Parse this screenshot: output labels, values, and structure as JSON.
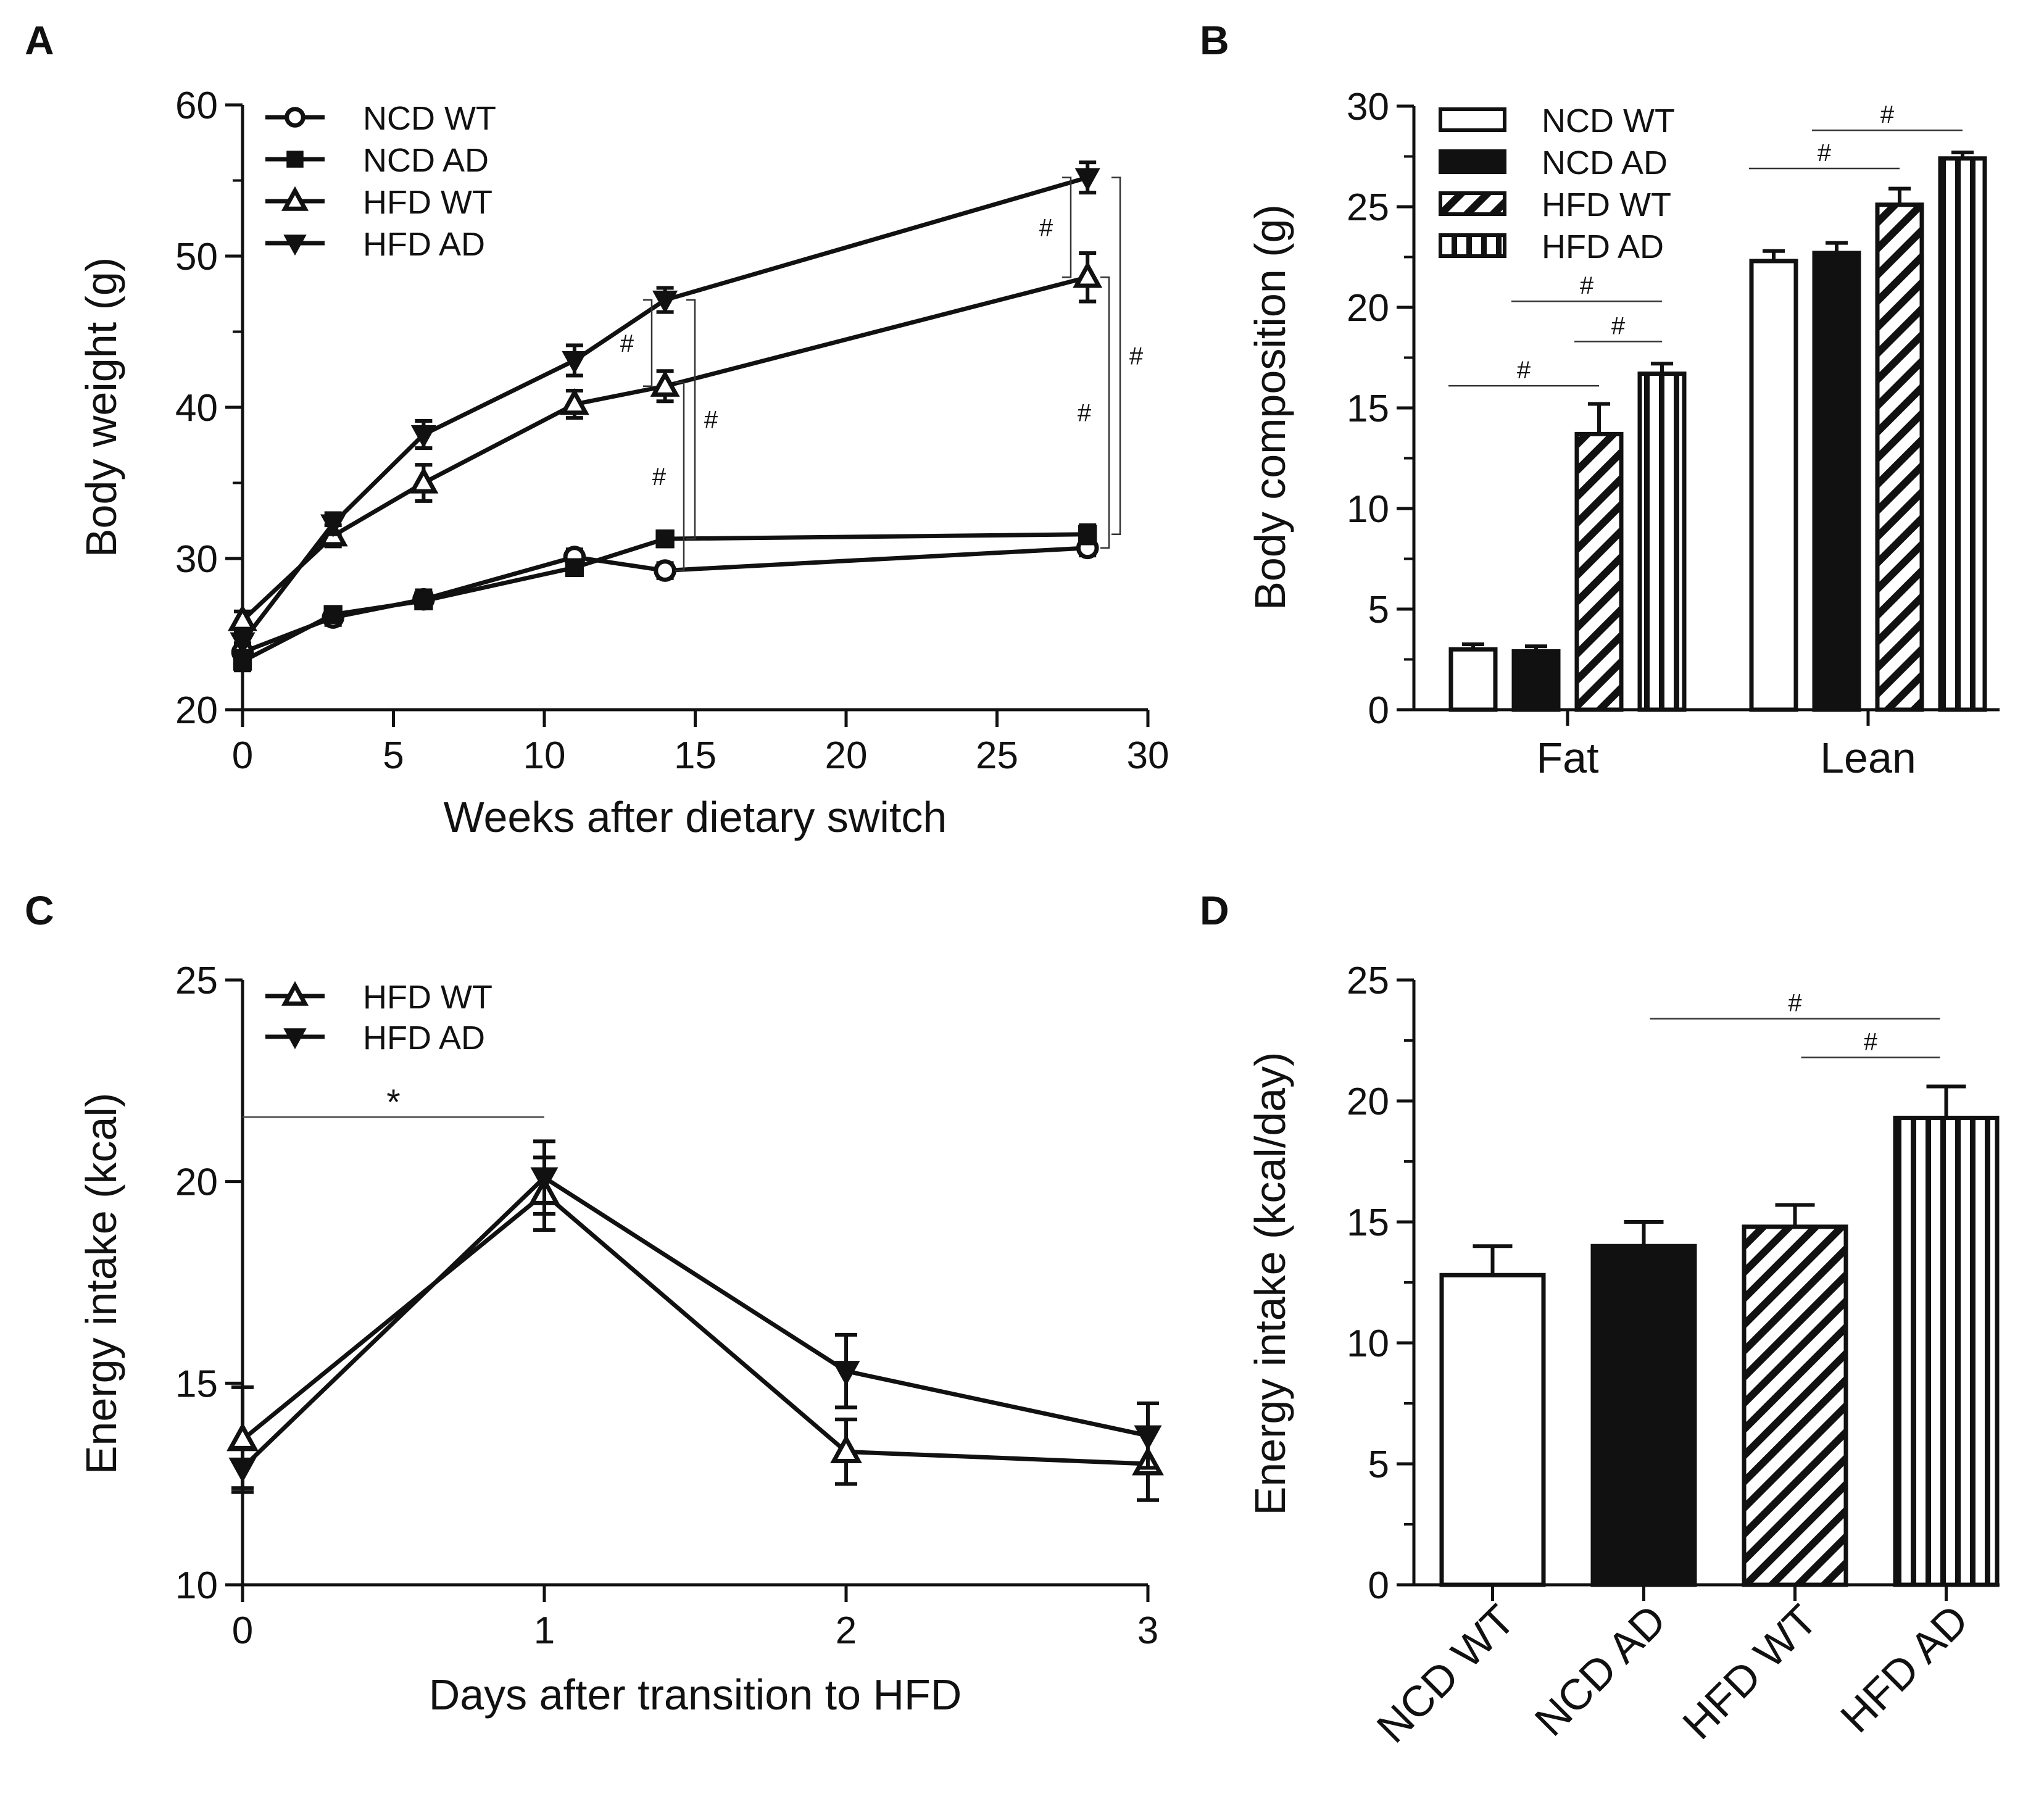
{
  "panels": [
    {
      "id": "A",
      "letter": "A",
      "chart_data": {
        "type": "line",
        "title": "",
        "xlabel": "Weeks after dietary switch",
        "ylabel": "Body weight (g)",
        "xlim": [
          0,
          30
        ],
        "ylim": [
          20,
          60
        ],
        "xticks": [
          0,
          5,
          10,
          15,
          20,
          25,
          30
        ],
        "yticks": [
          20,
          30,
          40,
          50,
          60
        ],
        "legend": "top-left",
        "series": [
          {
            "name": "NCD WT",
            "marker": "circle-open",
            "x": [
              0,
              3,
              6,
              11,
              14,
              28
            ],
            "y": [
              23.8,
              26.1,
              27.3,
              30.1,
              29.2,
              30.7
            ],
            "err": [
              0.6,
              0.5,
              0.6,
              0.5,
              0.5,
              0.5
            ]
          },
          {
            "name": "NCD AD",
            "marker": "square-filled",
            "x": [
              0,
              3,
              6,
              11,
              14,
              28
            ],
            "y": [
              23.2,
              26.3,
              27.2,
              29.4,
              31.3,
              31.6
            ],
            "err": [
              0.6,
              0.5,
              0.5,
              0.5,
              0.5,
              0.6
            ]
          },
          {
            "name": "HFD WT",
            "marker": "triangle-up-open",
            "x": [
              0,
              3,
              6,
              11,
              14,
              28
            ],
            "y": [
              25.9,
              31.5,
              35.0,
              40.2,
              41.4,
              48.6
            ],
            "err": [
              0.6,
              0.7,
              1.2,
              0.9,
              1.0,
              1.6
            ]
          },
          {
            "name": "HFD AD",
            "marker": "triangle-down-filled",
            "x": [
              0,
              3,
              6,
              11,
              14,
              28
            ],
            "y": [
              24.5,
              32.3,
              38.2,
              43.1,
              47.1,
              55.2
            ],
            "err": [
              0.6,
              0.7,
              0.9,
              1.0,
              0.8,
              1.0
            ]
          }
        ],
        "annotations": [
          {
            "text": "#",
            "type": "bracket",
            "x": 14,
            "y1": 41.4,
            "y2": 47.1
          },
          {
            "text": "#",
            "type": "bracket",
            "x": 14,
            "y1": 29.2,
            "y2": 41.4
          },
          {
            "text": "#",
            "type": "bracket",
            "x": 14,
            "y1": 31.3,
            "y2": 47.1
          },
          {
            "text": "#",
            "type": "bracket",
            "x": 28,
            "y1": 48.6,
            "y2": 55.2
          },
          {
            "text": "#",
            "type": "bracket",
            "x": 28,
            "y1": 30.7,
            "y2": 48.6
          },
          {
            "text": "#",
            "type": "bracket",
            "x": 28,
            "y1": 31.6,
            "y2": 55.2
          }
        ]
      }
    },
    {
      "id": "B",
      "letter": "B",
      "chart_data": {
        "type": "bar",
        "title": "",
        "xlabel": "",
        "ylabel": "Body composition (g)",
        "ylim": [
          0,
          30
        ],
        "yticks": [
          0,
          5,
          10,
          15,
          20,
          25,
          30
        ],
        "categories": [
          "Fat",
          "Lean"
        ],
        "legend": "top-left",
        "series": [
          {
            "name": "NCD WT",
            "pattern": "open",
            "values": [
              3.0,
              22.3
            ],
            "err": [
              0.25,
              0.5
            ]
          },
          {
            "name": "NCD AD",
            "pattern": "solid",
            "values": [
              2.9,
              22.7
            ],
            "err": [
              0.25,
              0.5
            ]
          },
          {
            "name": "HFD WT",
            "pattern": "diagonal",
            "values": [
              13.7,
              25.1
            ],
            "err": [
              1.5,
              0.8
            ]
          },
          {
            "name": "HFD AD",
            "pattern": "vertical",
            "values": [
              16.7,
              27.4
            ],
            "err": [
              0.5,
              0.3
            ]
          }
        ],
        "annotations": [
          {
            "text": "#",
            "category": "Fat",
            "from": "NCD WT",
            "to": "HFD WT",
            "y": 16.1
          },
          {
            "text": "#",
            "category": "Fat",
            "from": "NCD AD",
            "to": "HFD AD",
            "y": 20.3
          },
          {
            "text": "#",
            "category": "Fat",
            "from": "HFD WT",
            "to": "HFD AD",
            "y": 18.3
          },
          {
            "text": "#",
            "category": "Lean",
            "from": "NCD WT",
            "to": "HFD WT",
            "y": 26.9
          },
          {
            "text": "#",
            "category": "Lean",
            "from": "NCD AD",
            "to": "HFD AD",
            "y": 28.8
          }
        ]
      }
    },
    {
      "id": "C",
      "letter": "C",
      "chart_data": {
        "type": "line",
        "title": "",
        "xlabel": "Days after transition to HFD",
        "ylabel": "Energy intake (kcal)",
        "xlim": [
          0,
          3
        ],
        "ylim": [
          10,
          25
        ],
        "xticks": [
          0,
          1,
          2,
          3
        ],
        "yticks": [
          10,
          15,
          20,
          25
        ],
        "legend": "top-left",
        "series": [
          {
            "name": "HFD WT",
            "marker": "triangle-up-open",
            "x": [
              0,
              1,
              2,
              3
            ],
            "y": [
              13.6,
              19.7,
              13.3,
              13.0
            ],
            "err": [
              1.3,
              0.9,
              0.8,
              0.9
            ]
          },
          {
            "name": "HFD AD",
            "marker": "triangle-down-filled",
            "x": [
              0,
              1,
              2,
              3
            ],
            "y": [
              12.9,
              20.1,
              15.3,
              13.7
            ],
            "err": [
              0.5,
              0.9,
              0.9,
              0.8
            ]
          }
        ],
        "annotations": [
          {
            "text": "*",
            "x1": 0,
            "x2": 1,
            "y": 21.6
          }
        ]
      }
    },
    {
      "id": "D",
      "letter": "D",
      "chart_data": {
        "type": "bar",
        "title": "",
        "xlabel": "",
        "ylabel": "Energy intake (kcal/day)",
        "ylim": [
          0,
          25
        ],
        "yticks": [
          0,
          5,
          10,
          15,
          20,
          25
        ],
        "categories": [
          "NCD WT",
          "NCD AD",
          "HFD WT",
          "HFD AD"
        ],
        "patterns": [
          "open",
          "solid",
          "diagonal",
          "vertical"
        ],
        "values": [
          12.8,
          14.0,
          14.8,
          19.3
        ],
        "err": [
          1.2,
          1.0,
          0.9,
          1.3
        ],
        "annotations": [
          {
            "text": "#",
            "from": "NCD AD",
            "to": "HFD AD",
            "y": 23.4
          },
          {
            "text": "#",
            "from": "HFD WT",
            "to": "HFD AD",
            "y": 21.8
          }
        ]
      }
    }
  ]
}
